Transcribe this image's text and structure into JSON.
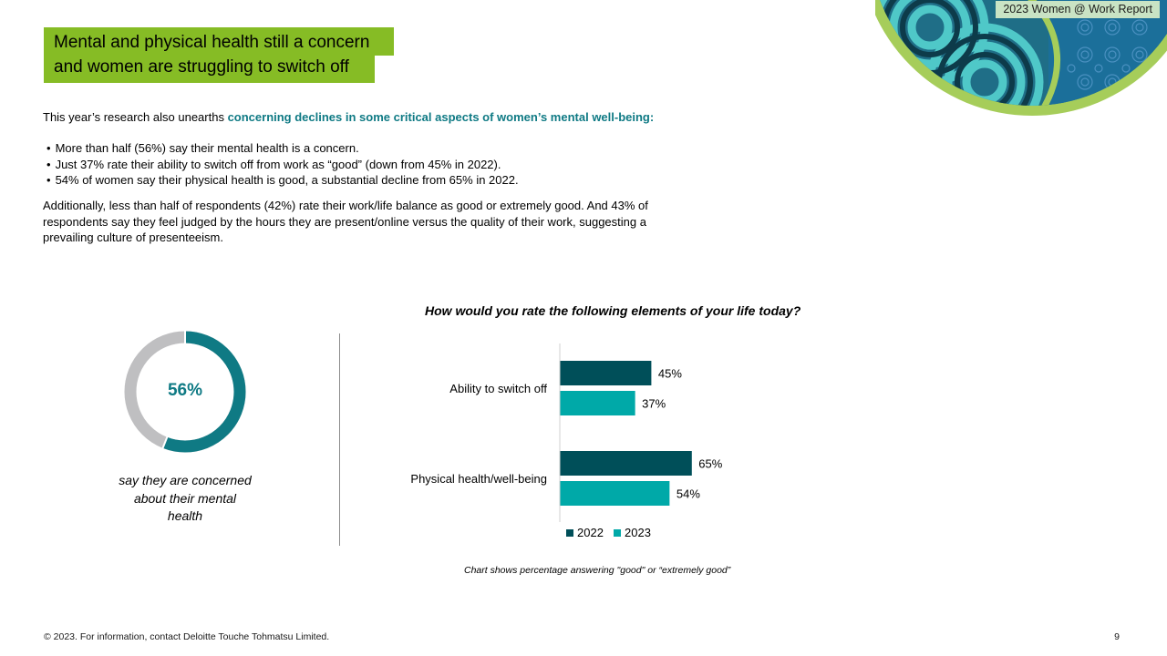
{
  "header": {
    "report_tag": "2023 Women @ Work Report",
    "title_line1": "Mental and physical health still a concern",
    "title_line2": "and women are struggling to switch off"
  },
  "body": {
    "intro_plain": "This year’s research also unearths ",
    "intro_highlight": "concerning declines in some critical aspects of women’s mental well-being:",
    "bullets": [
      "More than half (56%) say their mental health is a concern.",
      "Just 37% rate their ability to switch off from work as “good” (down from 45% in 2022).",
      "54% of women say their physical health is good, a substantial decline from 65% in 2022."
    ],
    "paragraph": "Additionally, less than half of respondents (42%) rate their work/life balance as good or extremely good.  And 43% of respondents say they feel judged by the hours they are present/online versus the quality of their work, suggesting a prevailing culture of presenteeism."
  },
  "donut": {
    "value": 56,
    "label": "56%",
    "caption_line1": "say they are concerned",
    "caption_line2": "about their mental",
    "caption_line3": "health",
    "fill_color": "#0f7a84",
    "rest_color": "#bfbfc1"
  },
  "chart_data": {
    "type": "bar",
    "orientation": "horizontal",
    "title": "How would you rate the following elements of your life today?",
    "categories": [
      "Ability to switch off",
      "Physical health/well-being"
    ],
    "series": [
      {
        "name": "2022",
        "values": [
          45,
          65
        ],
        "labels": [
          "45%",
          "65%"
        ],
        "color": "#004f59"
      },
      {
        "name": "2023",
        "values": [
          37,
          54
        ],
        "labels": [
          "37%",
          "54%"
        ],
        "color": "#00a9a8"
      }
    ],
    "xlim": [
      0,
      100
    ],
    "legend_position": "bottom",
    "grid": false,
    "note": "Chart shows percentage answering \"good\" or “extremely good”"
  },
  "footer": {
    "copyright": "© 2023. For information, contact Deloitte Touche Tohmatsu Limited.",
    "page_number": "9"
  }
}
